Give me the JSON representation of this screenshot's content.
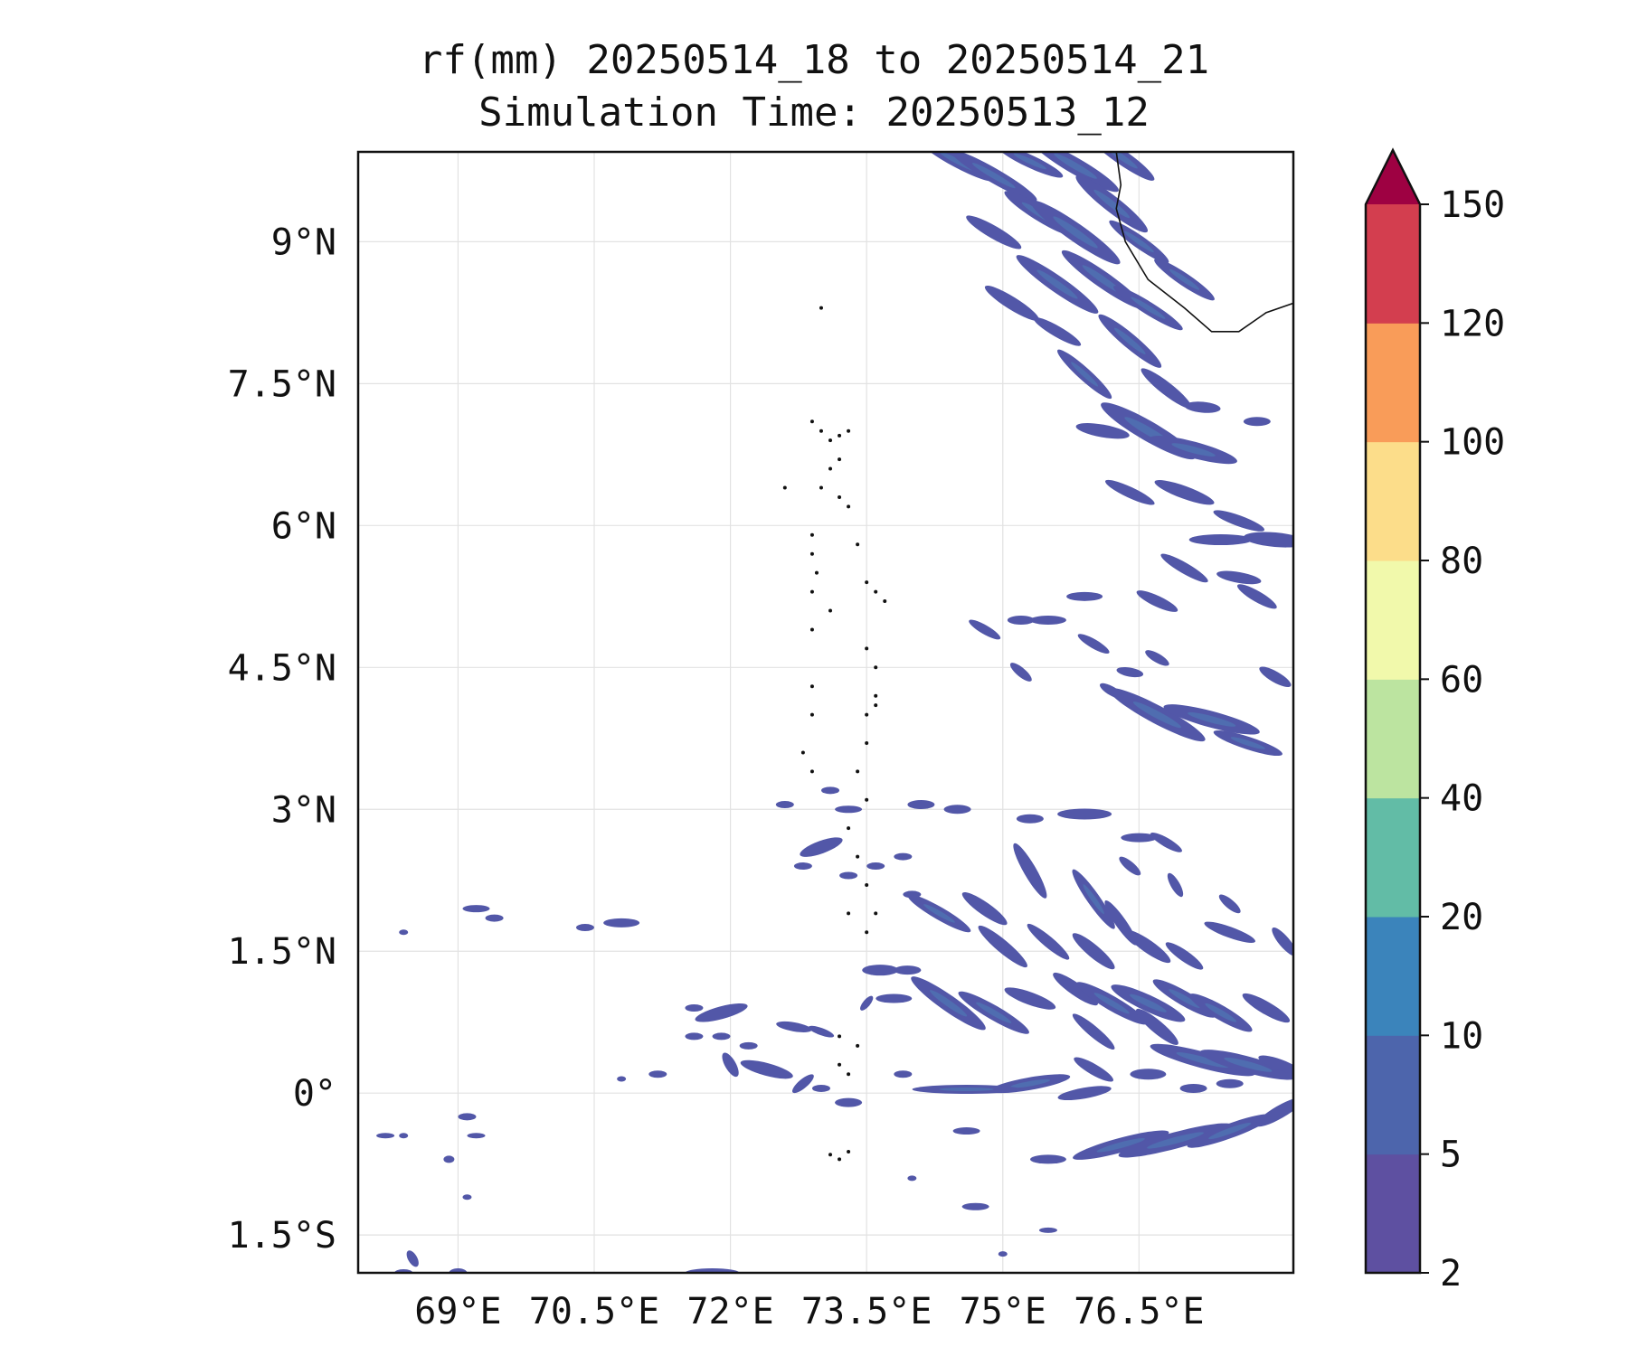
{
  "title": "rf(mm) 20250514_18 to 20250514_21",
  "subtitle": "Simulation Time: 20250513_12",
  "map": {
    "lon_range": [
      67.9,
      78.2
    ],
    "lat_range": [
      -1.9,
      9.95
    ],
    "lat_ticks": [
      {
        "value": 9,
        "label": "9°N"
      },
      {
        "value": 7.5,
        "label": "7.5°N"
      },
      {
        "value": 6,
        "label": "6°N"
      },
      {
        "value": 4.5,
        "label": "4.5°N"
      },
      {
        "value": 3,
        "label": "3°N"
      },
      {
        "value": 1.5,
        "label": "1.5°N"
      },
      {
        "value": 0,
        "label": "0°"
      },
      {
        "value": -1.5,
        "label": "1.5°S"
      }
    ],
    "lon_ticks": [
      {
        "value": 69,
        "label": "69°E"
      },
      {
        "value": 70.5,
        "label": "70.5°E"
      },
      {
        "value": 72,
        "label": "72°E"
      },
      {
        "value": 73.5,
        "label": "73.5°E"
      },
      {
        "value": 75,
        "label": "75°E"
      },
      {
        "value": 76.5,
        "label": "76.5°E"
      }
    ],
    "grid": true
  },
  "colorbar": {
    "levels": [
      "2",
      "5",
      "10",
      "20",
      "40",
      "60",
      "80",
      "100",
      "120",
      "150"
    ],
    "colors": [
      "#5e50a1",
      "#4d65ac",
      "#3b84bb",
      "#62bca6",
      "#bce4a0",
      "#f1f9ab",
      "#fcdd8a",
      "#f99c59",
      "#d33e4f"
    ],
    "extend_color": "#9e0142",
    "extend": "max"
  },
  "rain_color": "#5257a8",
  "rain_band_color": "#4f6db0",
  "coast_color": "#111111"
}
